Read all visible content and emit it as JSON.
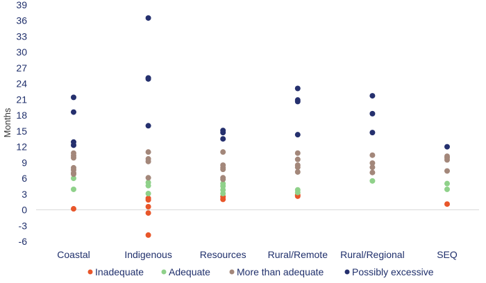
{
  "chart_data": {
    "type": "scatter",
    "title": "",
    "xlabel": "",
    "ylabel": "Months",
    "ylim": [
      -6,
      39
    ],
    "yticks": [
      -6,
      -3,
      0,
      3,
      6,
      9,
      12,
      15,
      18,
      21,
      24,
      27,
      30,
      33,
      36,
      39
    ],
    "categories": [
      "Coastal",
      "Indigenous",
      "Resources",
      "Rural/Remote",
      "Rural/Regional",
      "SEQ"
    ],
    "grid": false,
    "legend_position": "bottom",
    "series": [
      {
        "name": "Inadequate",
        "color": "#e8562a",
        "points": [
          {
            "category": "Coastal",
            "y": 0.2
          },
          {
            "category": "Indigenous",
            "y": 2.2
          },
          {
            "category": "Indigenous",
            "y": 1.9
          },
          {
            "category": "Indigenous",
            "y": 0.6
          },
          {
            "category": "Indigenous",
            "y": -0.6
          },
          {
            "category": "Indigenous",
            "y": -4.8
          },
          {
            "category": "Resources",
            "y": 2.5
          },
          {
            "category": "Resources",
            "y": 2.0
          },
          {
            "category": "Rural/Remote",
            "y": 2.8
          },
          {
            "category": "Rural/Remote",
            "y": 2.6
          },
          {
            "category": "SEQ",
            "y": 1.1
          }
        ]
      },
      {
        "name": "Adequate",
        "color": "#8fd18a",
        "points": [
          {
            "category": "Coastal",
            "y": 6.0
          },
          {
            "category": "Coastal",
            "y": 3.9
          },
          {
            "category": "Indigenous",
            "y": 5.2
          },
          {
            "category": "Indigenous",
            "y": 4.6
          },
          {
            "category": "Indigenous",
            "y": 3.1
          },
          {
            "category": "Resources",
            "y": 5.0
          },
          {
            "category": "Resources",
            "y": 4.5
          },
          {
            "category": "Resources",
            "y": 3.8
          },
          {
            "category": "Resources",
            "y": 3.1
          },
          {
            "category": "Rural/Remote",
            "y": 3.8
          },
          {
            "category": "Rural/Remote",
            "y": 3.3
          },
          {
            "category": "Rural/Regional",
            "y": 5.5
          },
          {
            "category": "SEQ",
            "y": 5.0
          },
          {
            "category": "SEQ",
            "y": 3.9
          }
        ]
      },
      {
        "name": "More than adequate",
        "color": "#a3877a",
        "points": [
          {
            "category": "Coastal",
            "y": 10.8
          },
          {
            "category": "Coastal",
            "y": 10.3
          },
          {
            "category": "Coastal",
            "y": 9.9
          },
          {
            "category": "Coastal",
            "y": 8.0
          },
          {
            "category": "Coastal",
            "y": 7.6
          },
          {
            "category": "Coastal",
            "y": 7.0
          },
          {
            "category": "Coastal",
            "y": 6.8
          },
          {
            "category": "Indigenous",
            "y": 11.0
          },
          {
            "category": "Indigenous",
            "y": 9.7
          },
          {
            "category": "Indigenous",
            "y": 9.2
          },
          {
            "category": "Indigenous",
            "y": 6.1
          },
          {
            "category": "Resources",
            "y": 11.0
          },
          {
            "category": "Resources",
            "y": 8.5
          },
          {
            "category": "Resources",
            "y": 8.0
          },
          {
            "category": "Resources",
            "y": 7.7
          },
          {
            "category": "Resources",
            "y": 6.1
          },
          {
            "category": "Resources",
            "y": 5.8
          },
          {
            "category": "Rural/Remote",
            "y": 10.8
          },
          {
            "category": "Rural/Remote",
            "y": 9.6
          },
          {
            "category": "Rural/Remote",
            "y": 8.5
          },
          {
            "category": "Rural/Remote",
            "y": 8.1
          },
          {
            "category": "Rural/Remote",
            "y": 7.2
          },
          {
            "category": "Rural/Regional",
            "y": 10.4
          },
          {
            "category": "Rural/Regional",
            "y": 8.9
          },
          {
            "category": "Rural/Regional",
            "y": 8.1
          },
          {
            "category": "Rural/Regional",
            "y": 7.1
          },
          {
            "category": "SEQ",
            "y": 10.2
          },
          {
            "category": "SEQ",
            "y": 9.9
          },
          {
            "category": "SEQ",
            "y": 9.5
          },
          {
            "category": "SEQ",
            "y": 7.4
          }
        ]
      },
      {
        "name": "Possibly excessive",
        "color": "#25306e",
        "points": [
          {
            "category": "Coastal",
            "y": 21.4
          },
          {
            "category": "Coastal",
            "y": 18.6
          },
          {
            "category": "Coastal",
            "y": 12.9
          },
          {
            "category": "Coastal",
            "y": 12.3
          },
          {
            "category": "Indigenous",
            "y": 36.5
          },
          {
            "category": "Indigenous",
            "y": 25.1
          },
          {
            "category": "Indigenous",
            "y": 24.9
          },
          {
            "category": "Indigenous",
            "y": 16.0
          },
          {
            "category": "Resources",
            "y": 15.1
          },
          {
            "category": "Resources",
            "y": 14.7
          },
          {
            "category": "Resources",
            "y": 13.5
          },
          {
            "category": "Rural/Remote",
            "y": 23.1
          },
          {
            "category": "Rural/Remote",
            "y": 20.9
          },
          {
            "category": "Rural/Remote",
            "y": 20.6
          },
          {
            "category": "Rural/Remote",
            "y": 14.3
          },
          {
            "category": "Rural/Regional",
            "y": 21.7
          },
          {
            "category": "Rural/Regional",
            "y": 18.3
          },
          {
            "category": "Rural/Regional",
            "y": 14.7
          },
          {
            "category": "SEQ",
            "y": 12.0
          }
        ]
      }
    ]
  }
}
